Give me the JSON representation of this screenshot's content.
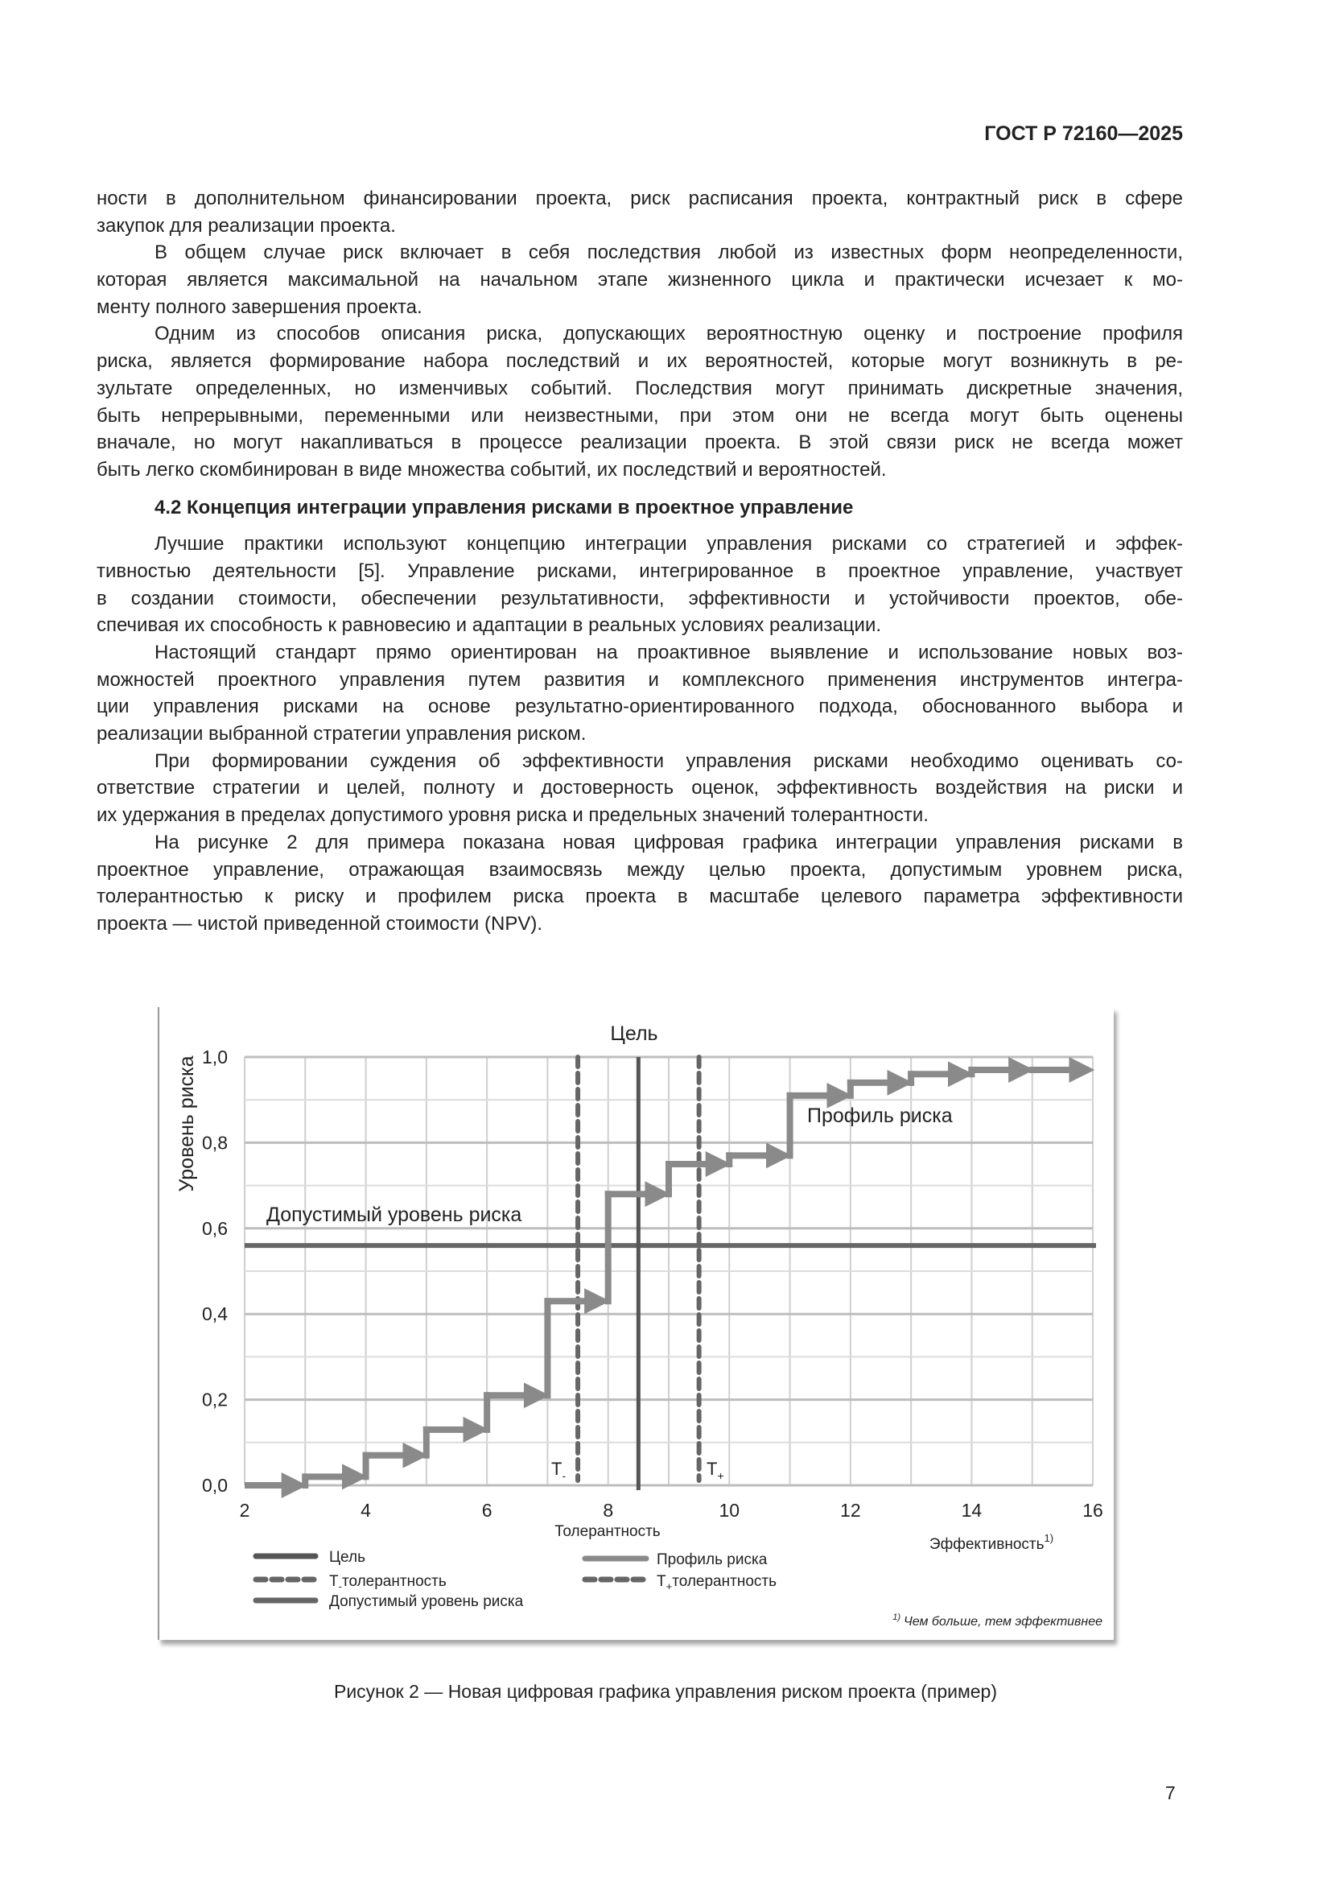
{
  "header": {
    "doc_code": "ГОСТ Р 72160—2025"
  },
  "body": {
    "paragraphs": [
      {
        "indent": false,
        "lines": [
          "ности в дополнительном финансировании проекта, риск расписания проекта, контрактный риск в сфере",
          "закупок для реализации проекта."
        ]
      },
      {
        "indent": true,
        "lines": [
          "В общем случае риск включает в себя последствия любой из известных форм неопределенности,",
          "которая является максимальной на начальном этапе жизненного цикла и практически исчезает к мо-",
          "менту полного завершения проекта."
        ]
      },
      {
        "indent": true,
        "lines": [
          "Одним из способов описания риска, допускающих вероятностную оценку и построение профиля",
          "риска, является формирование набора последствий и их вероятностей, которые могут возникнуть в ре-",
          "зультате определенных, но изменчивых событий. Последствия могут принимать дискретные значения,",
          "быть непрерывными, переменными или неизвестными, при этом они не всегда могут быть оценены",
          "вначале, но могут накапливаться в процессе реализации проекта. В этой связи риск не всегда может",
          "быть легко скомбинирован в виде множества событий, их последствий и вероятностей."
        ]
      }
    ],
    "section_heading": "4.2 Концепция интеграции управления рисками в проектное управление",
    "paragraphs2": [
      {
        "indent": true,
        "lines": [
          "Лучшие практики используют концепцию интеграции управления рисками со стратегией и эффек-",
          "тивностью деятельности [5]. Управление рисками, интегрированное в проектное управление, участвует",
          "в создании стоимости, обеспечении результативности, эффективности и устойчивости проектов, обе-",
          "спечивая их способность к равновесию и адаптации в реальных условиях реализации."
        ]
      },
      {
        "indent": true,
        "lines": [
          "Настоящий стандарт прямо ориентирован на проактивное выявление и использование новых воз-",
          "можностей проектного управления путем развития и комплексного применения инструментов интегра-",
          "ции управления рисками на основе результатно-ориентированного подхода, обоснованного выбора и",
          "реализации выбранной стратегии управления риском."
        ]
      },
      {
        "indent": true,
        "lines": [
          "При формировании суждения об эффективности управления рисками необходимо оценивать со-",
          "ответствие стратегии и целей, полноту и достоверность оценок, эффективность воздействия на риски и",
          "их удержания в пределах допустимого уровня риска и предельных значений толерантности."
        ]
      },
      {
        "indent": true,
        "lines": [
          "На рисунке 2 для примера показана новая цифровая графика интеграции управления рисками в",
          "проектное управление, отражающая взаимосвязь между целью проекта, допустимым уровнем риска,",
          "толерантностью к риску и профилем риска проекта в масштабе целевого параметра эффективности",
          "проекта — чистой приведенной стоимости (NPV)."
        ]
      }
    ]
  },
  "chart_data": {
    "type": "line",
    "title": "Цель",
    "ylabel": "Уровень риска",
    "xlabel": "Эффективность",
    "xlabel_superscript": "1)",
    "xlim": [
      2,
      16
    ],
    "ylim": [
      0,
      1.0
    ],
    "xticks": [
      "2",
      "4",
      "6",
      "8",
      "10",
      "12",
      "14",
      "16"
    ],
    "xtick_values": [
      2,
      4,
      6,
      8,
      10,
      12,
      14,
      16
    ],
    "yticks": [
      "0,0",
      "0,2",
      "0,4",
      "0,6",
      "0,8",
      "1,0"
    ],
    "ytick_values": [
      0,
      0.2,
      0.4,
      0.6,
      0.8,
      1.0
    ],
    "grid": true,
    "risk_profile": {
      "name": "Профиль риска",
      "steps": [
        {
          "x0": 2,
          "x1": 3,
          "y": 0.0
        },
        {
          "x0": 3,
          "x1": 4,
          "y": 0.02
        },
        {
          "x0": 4,
          "x1": 5,
          "y": 0.07
        },
        {
          "x0": 5,
          "x1": 6,
          "y": 0.13
        },
        {
          "x0": 6,
          "x1": 7,
          "y": 0.21
        },
        {
          "x0": 7,
          "x1": 8,
          "y": 0.43
        },
        {
          "x0": 8,
          "x1": 9,
          "y": 0.68
        },
        {
          "x0": 9,
          "x1": 10,
          "y": 0.75
        },
        {
          "x0": 10,
          "x1": 11,
          "y": 0.77
        },
        {
          "x0": 11,
          "x1": 12,
          "y": 0.91
        },
        {
          "x0": 12,
          "x1": 13,
          "y": 0.94
        },
        {
          "x0": 13,
          "x1": 14,
          "y": 0.96
        },
        {
          "x0": 14,
          "x1": 15,
          "y": 0.97
        },
        {
          "x0": 15,
          "x1": 16,
          "y": 0.97
        }
      ],
      "color": "#8a8a8a"
    },
    "goal": {
      "x": 8.5,
      "color": "#555555"
    },
    "t_minus": {
      "x": 7.5,
      "label": "T",
      "sub": "-",
      "color": "#666666"
    },
    "t_plus": {
      "x": 9.5,
      "label": "T",
      "sub": "+",
      "color": "#666666"
    },
    "acceptable_risk": {
      "y": 0.56,
      "label": "Допустимый уровень риска",
      "color": "#666666"
    },
    "profile_label": "Профиль риска",
    "tolerance_label": "Толерантность",
    "legend": [
      {
        "label": "Цель",
        "style": "solid-dark"
      },
      {
        "label": "Профиль риска",
        "style": "solid-light"
      },
      {
        "label_main": "Т",
        "label_sub": "-",
        "label_rest": "толерантность",
        "style": "dashed"
      },
      {
        "label_main": "Т",
        "label_sub": "+",
        "label_rest": "толерантность",
        "style": "dashed"
      },
      {
        "label": "Допустимый уровень риска",
        "style": "solid-mid"
      }
    ],
    "footnote_mark": "1)",
    "footnote": "Чем больше, тем эффективнее"
  },
  "caption": "Рисунок 2 — Новая цифровая графика управления риском проекта (пример)",
  "page_number": "7"
}
